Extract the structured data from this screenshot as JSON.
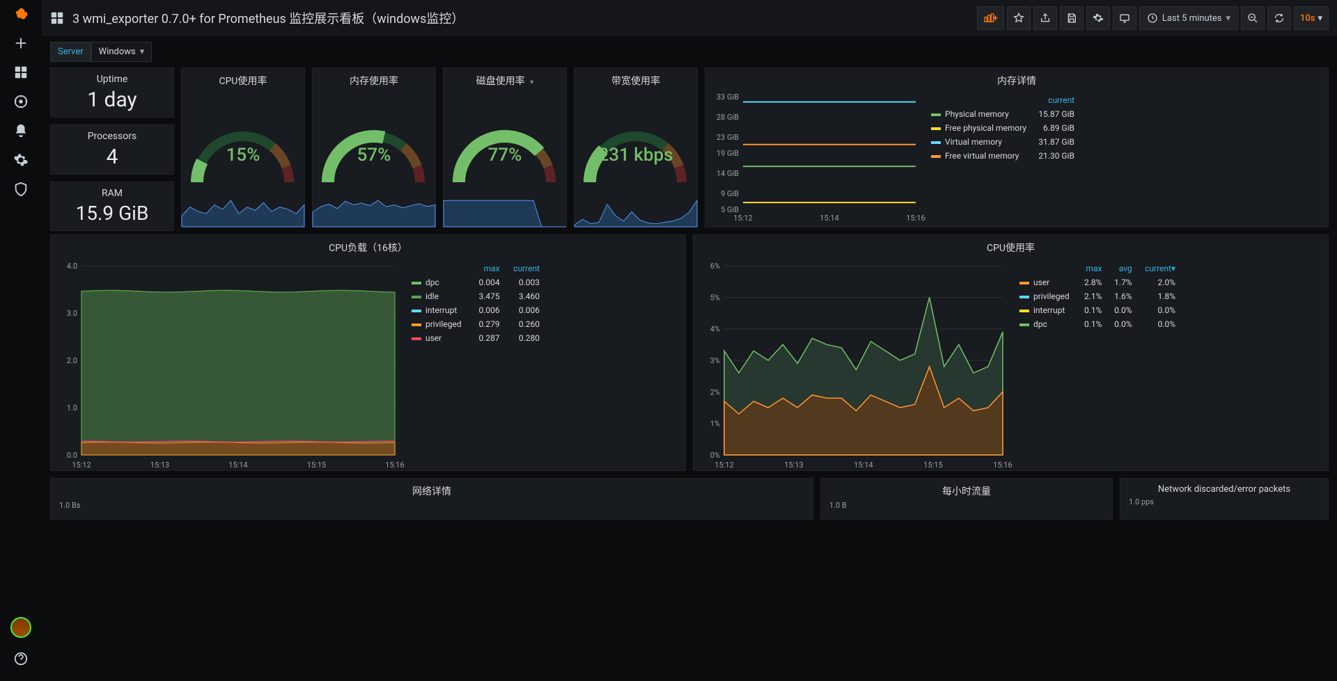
{
  "colors": {
    "bg": "#0b0c0e",
    "panel_bg": "#181b1f",
    "accent_blue": "#33b5e5",
    "accent_orange": "#ff780a",
    "green": "#73bf69",
    "red": "#f2495c",
    "yellow": "#fade2a",
    "cyan": "#5dd8ff",
    "orange_line": "#ff9830",
    "dark_blue_fill": "#1f3a56",
    "grid_line": "#2c2f33",
    "text_muted": "#9aa0a6"
  },
  "header": {
    "title": "3 wmi_exporter 0.7.0+ for Prometheus 监控展示看板（windows监控）",
    "time_range": "Last 5 minutes",
    "refresh_interval": "10s"
  },
  "variable": {
    "label": "Server",
    "value": "Windows"
  },
  "statcol": {
    "uptime_label": "Uptime",
    "uptime_value": "1 day",
    "processors_label": "Processors",
    "processors_value": "4",
    "ram_label": "RAM",
    "ram_value": "15.9 GiB"
  },
  "gauges": {
    "cpu": {
      "title": "CPU使用率",
      "value_pct": 15,
      "value_text": "15%",
      "color": "#73bf69",
      "spark": [
        10,
        18,
        14,
        12,
        20,
        16,
        24,
        12,
        18,
        15,
        22,
        14,
        18,
        16,
        12,
        20
      ],
      "spark_color": "#1f3a56",
      "spark_stroke": "#5794f2"
    },
    "mem": {
      "title": "内存使用率",
      "value_pct": 57,
      "value_text": "57%",
      "color": "#73bf69",
      "spark": [
        40,
        55,
        62,
        50,
        70,
        60,
        65,
        58,
        72,
        55,
        60,
        52,
        58,
        63,
        56,
        60
      ],
      "spark_color": "#1f3a56",
      "spark_stroke": "#5794f2"
    },
    "disk": {
      "title": "磁盘使用率",
      "value_pct": 77,
      "value_text": "77%",
      "color": "#73bf69",
      "spark": [
        77,
        77,
        77,
        77,
        77,
        77,
        77,
        77,
        77,
        77,
        77,
        77,
        0,
        0,
        0,
        0
      ],
      "spark_color": "#1f3a56",
      "spark_stroke": "#5794f2",
      "has_dropdown": true
    },
    "bw": {
      "title": "带宽使用率",
      "value_pct": 25,
      "value_text": "231 kbps",
      "color": "#73bf69",
      "spark": [
        5,
        20,
        8,
        12,
        60,
        30,
        15,
        40,
        18,
        10,
        8,
        12,
        15,
        22,
        38,
        70
      ],
      "spark_color": "#1f3a56",
      "spark_stroke": "#5794f2"
    }
  },
  "mem_detail": {
    "title": "内存详情",
    "ylim": [
      5,
      33
    ],
    "yticks": [
      5,
      9,
      14,
      19,
      23,
      28,
      33
    ],
    "ytick_labels": [
      "5 GiB",
      "9 GiB",
      "14 GiB",
      "19 GiB",
      "23 GiB",
      "28 GiB",
      "33 GiB"
    ],
    "xticks": [
      "15:12",
      "15:14",
      "15:16"
    ],
    "header": "current",
    "series": [
      {
        "name": "Physical memory",
        "color": "#73bf69",
        "val": 15.87,
        "current": "15.87 GiB"
      },
      {
        "name": "Free physical memory",
        "color": "#fade2a",
        "val": 6.89,
        "current": "6.89 GiB"
      },
      {
        "name": "Virtual memory",
        "color": "#5dd8ff",
        "val": 31.87,
        "current": "31.87 GiB"
      },
      {
        "name": "Free virtual memory",
        "color": "#ff9830",
        "val": 21.3,
        "current": "21.30 GiB"
      }
    ]
  },
  "cpu_load": {
    "title": "CPU负载（16核）",
    "ylim": [
      0,
      4
    ],
    "yticks": [
      0,
      1.0,
      2.0,
      3.0,
      4.0
    ],
    "xticks": [
      "15:12",
      "15:13",
      "15:14",
      "15:15",
      "15:16"
    ],
    "headers": [
      "max",
      "current"
    ],
    "series": [
      {
        "name": "dpc",
        "color": "#73bf69",
        "max": "0.004",
        "current": "0.003",
        "line": 0.004,
        "fill": false
      },
      {
        "name": "idle",
        "color": "#56a64b",
        "max": "3.475",
        "current": "3.460",
        "line": 3.46,
        "fill": true
      },
      {
        "name": "interrupt",
        "color": "#5dd8ff",
        "max": "0.006",
        "current": "0.006",
        "line": 0.006,
        "fill": false
      },
      {
        "name": "privileged",
        "color": "#ff9830",
        "max": "0.279",
        "current": "0.260",
        "line": 0.26,
        "fill": true
      },
      {
        "name": "user",
        "color": "#f2495c",
        "max": "0.287",
        "current": "0.280",
        "line": 0.28,
        "fill": false
      }
    ]
  },
  "cpu_usage": {
    "title": "CPU使用率",
    "ylim": [
      0,
      6
    ],
    "yticks": [
      0,
      1,
      2,
      3,
      4,
      5,
      6
    ],
    "ytick_labels": [
      "0%",
      "1%",
      "2%",
      "3%",
      "4%",
      "5%",
      "6%"
    ],
    "xticks": [
      "15:12",
      "15:13",
      "15:14",
      "15:15",
      "15:16"
    ],
    "headers": [
      "max",
      "avg",
      "current"
    ],
    "series_legend": [
      {
        "name": "user",
        "color": "#ff9830",
        "max": "2.8%",
        "avg": "1.7%",
        "current": "2.0%"
      },
      {
        "name": "privileged",
        "color": "#5dd8ff",
        "max": "2.1%",
        "avg": "1.6%",
        "current": "1.8%"
      },
      {
        "name": "interrupt",
        "color": "#fade2a",
        "max": "0.1%",
        "avg": "0.0%",
        "current": "0.0%"
      },
      {
        "name": "dpc",
        "color": "#73bf69",
        "max": "0.1%",
        "avg": "0.0%",
        "current": "0.0%"
      }
    ],
    "total_line": {
      "color": "#73bf69",
      "data": [
        3.3,
        2.6,
        3.3,
        3.0,
        3.5,
        2.9,
        3.7,
        3.5,
        3.4,
        2.7,
        3.6,
        3.3,
        3.0,
        3.2,
        5.0,
        2.8,
        3.5,
        2.6,
        2.8,
        3.9
      ]
    },
    "user_line": {
      "color": "#ff9830",
      "data": [
        1.7,
        1.3,
        1.7,
        1.5,
        1.8,
        1.5,
        1.9,
        1.8,
        1.8,
        1.4,
        1.9,
        1.7,
        1.5,
        1.6,
        2.8,
        1.5,
        1.8,
        1.4,
        1.5,
        2.0
      ]
    }
  },
  "bottom_panels": {
    "net_detail_title": "网络详情",
    "net_detail_y0": "1.0 Bs",
    "hourly_title": "每小时流量",
    "hourly_y0": "1.0 B",
    "discard_title": "Network discarded/error packets",
    "discard_y0": "1.0 pps"
  }
}
